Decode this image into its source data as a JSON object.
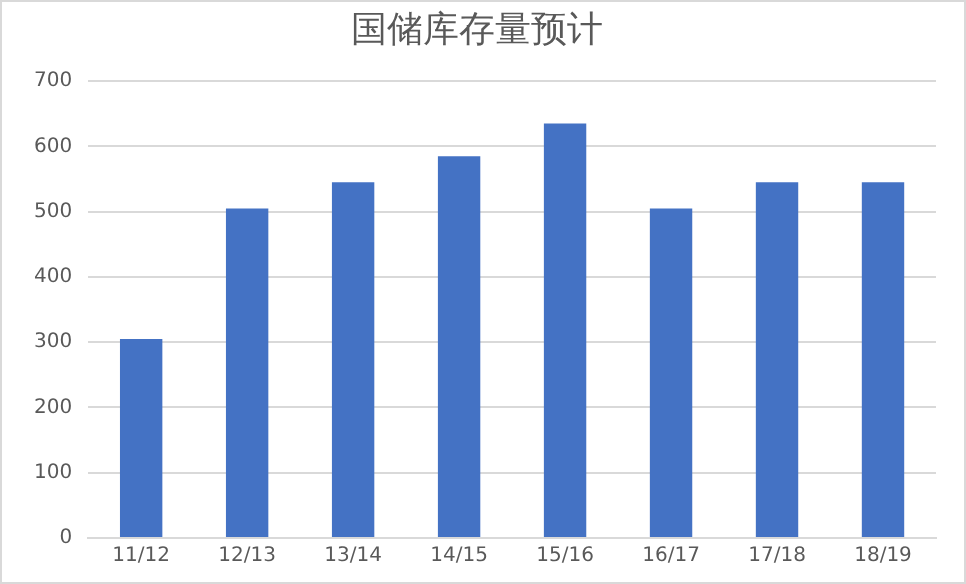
{
  "chart_data": {
    "type": "bar",
    "title": "国储库存量预计",
    "categories": [
      "11/12",
      "12/13",
      "13/14",
      "14/15",
      "15/16",
      "16/17",
      "17/18",
      "18/19"
    ],
    "values": [
      305,
      505,
      545,
      585,
      635,
      505,
      545,
      545
    ],
    "color": "#4472c4",
    "ylim": [
      0,
      700
    ],
    "yticks": [
      0,
      100,
      200,
      300,
      400,
      500,
      600,
      700
    ],
    "grid": "y"
  }
}
